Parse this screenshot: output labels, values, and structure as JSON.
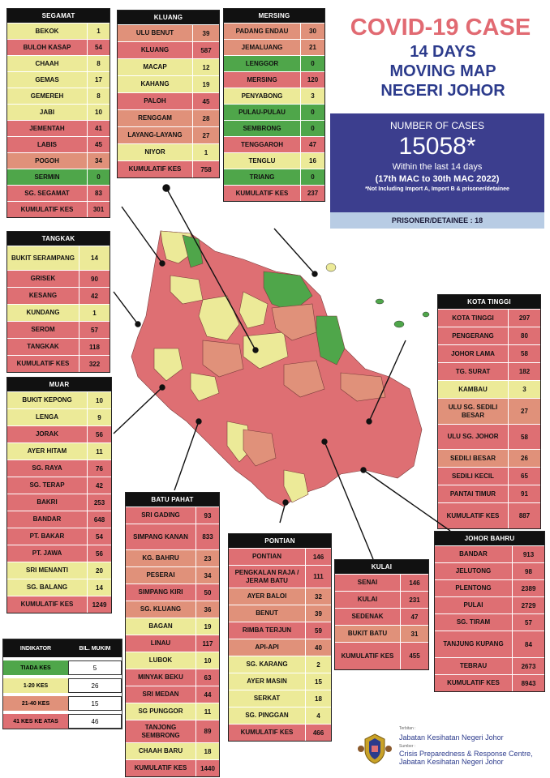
{
  "colors": {
    "tiada_kes": "#4fa64a",
    "kes_1_20": "#ecea98",
    "kes_21_40": "#e0917a",
    "kes_41_atas": "#de6f73",
    "title_red": "#e16a72",
    "title_blue": "#2c3b8c",
    "box_blue": "#3c3e8e",
    "prisoner_bg": "#b8cce4"
  },
  "title": {
    "line1": "COVID-19 CASE",
    "line2": "14 DAYS",
    "line3": "MOVING MAP",
    "line4": "NEGERI JOHOR"
  },
  "summary": {
    "label": "NUMBER OF CASES",
    "total": "15058*",
    "within": "Within the last 14 days",
    "period": "(17th MAC to 30th MAC 2022)",
    "note": "*Not Including Import A, Import B & prisoner/detainee",
    "prisoner": "PRISONER/DETAINEE : 18"
  },
  "districts": {
    "segamat": {
      "name": "SEGAMAT",
      "rows": [
        {
          "name": "BEKOK",
          "value": "1",
          "level": 1
        },
        {
          "name": "BULOH KASAP",
          "value": "54",
          "level": 3
        },
        {
          "name": "CHAAH",
          "value": "8",
          "level": 1
        },
        {
          "name": "GEMAS",
          "value": "17",
          "level": 1
        },
        {
          "name": "GEMEREH",
          "value": "8",
          "level": 1
        },
        {
          "name": "JABI",
          "value": "10",
          "level": 1
        },
        {
          "name": "JEMENTAH",
          "value": "41",
          "level": 3
        },
        {
          "name": "LABIS",
          "value": "45",
          "level": 3
        },
        {
          "name": "POGOH",
          "value": "34",
          "level": 2
        },
        {
          "name": "SERMIN",
          "value": "0",
          "level": 0
        },
        {
          "name": "SG. SEGAMAT",
          "value": "83",
          "level": 3
        },
        {
          "name": "KUMULATIF KES",
          "value": "301",
          "level": 3
        }
      ]
    },
    "kluang": {
      "name": "KLUANG",
      "rows": [
        {
          "name": "ULU BENUT",
          "value": "39",
          "level": 2
        },
        {
          "name": "KLUANG",
          "value": "587",
          "level": 3
        },
        {
          "name": "MACAP",
          "value": "12",
          "level": 1
        },
        {
          "name": "KAHANG",
          "value": "19",
          "level": 1
        },
        {
          "name": "PALOH",
          "value": "45",
          "level": 3
        },
        {
          "name": "RENGGAM",
          "value": "28",
          "level": 2
        },
        {
          "name": "LAYANG-LAYANG",
          "value": "27",
          "level": 2
        },
        {
          "name": "NIYOR",
          "value": "1",
          "level": 1
        },
        {
          "name": "KUMULATIF KES",
          "value": "758",
          "level": 3
        }
      ]
    },
    "mersing": {
      "name": "MERSING",
      "rows": [
        {
          "name": "PADANG ENDAU",
          "value": "30",
          "level": 2
        },
        {
          "name": "JEMALUANG",
          "value": "21",
          "level": 2
        },
        {
          "name": "LENGGOR",
          "value": "0",
          "level": 0
        },
        {
          "name": "MERSING",
          "value": "120",
          "level": 3
        },
        {
          "name": "PENYABONG",
          "value": "3",
          "level": 1
        },
        {
          "name": "PULAU-PULAU",
          "value": "0",
          "level": 0
        },
        {
          "name": "SEMBRONG",
          "value": "0",
          "level": 0
        },
        {
          "name": "TENGGAROH",
          "value": "47",
          "level": 3
        },
        {
          "name": "TENGLU",
          "value": "16",
          "level": 1
        },
        {
          "name": "TRIANG",
          "value": "0",
          "level": 0
        },
        {
          "name": "KUMULATIF KES",
          "value": "237",
          "level": 3
        }
      ]
    },
    "tangkak": {
      "name": "TANGKAK",
      "rows": [
        {
          "name": "BUKIT SERAMPANG",
          "value": "14",
          "level": 1
        },
        {
          "name": "GRISEK",
          "value": "90",
          "level": 3
        },
        {
          "name": "KESANG",
          "value": "42",
          "level": 3
        },
        {
          "name": "KUNDANG",
          "value": "1",
          "level": 1
        },
        {
          "name": "SEROM",
          "value": "57",
          "level": 3
        },
        {
          "name": "TANGKAK",
          "value": "118",
          "level": 3
        },
        {
          "name": "KUMULATIF KES",
          "value": "322",
          "level": 3
        }
      ]
    },
    "muar": {
      "name": "MUAR",
      "rows": [
        {
          "name": "BUKIT KEPONG",
          "value": "10",
          "level": 1
        },
        {
          "name": "LENGA",
          "value": "9",
          "level": 1
        },
        {
          "name": "JORAK",
          "value": "56",
          "level": 3
        },
        {
          "name": "AYER HITAM",
          "value": "11",
          "level": 1
        },
        {
          "name": "SG. RAYA",
          "value": "76",
          "level": 3
        },
        {
          "name": "SG. TERAP",
          "value": "42",
          "level": 3
        },
        {
          "name": "BAKRI",
          "value": "253",
          "level": 3
        },
        {
          "name": "BANDAR",
          "value": "648",
          "level": 3
        },
        {
          "name": "PT. BAKAR",
          "value": "54",
          "level": 3
        },
        {
          "name": "PT. JAWA",
          "value": "56",
          "level": 3
        },
        {
          "name": "SRI MENANTI",
          "value": "20",
          "level": 1
        },
        {
          "name": "SG. BALANG",
          "value": "14",
          "level": 1
        },
        {
          "name": "KUMULATIF KES",
          "value": "1249",
          "level": 3
        }
      ]
    },
    "kotatinggi": {
      "name": "KOTA TINGGI",
      "rows": [
        {
          "name": "KOTA TINGGI",
          "value": "297",
          "level": 3
        },
        {
          "name": "PENGERANG",
          "value": "80",
          "level": 3
        },
        {
          "name": "JOHOR LAMA",
          "value": "58",
          "level": 3
        },
        {
          "name": "TG. SURAT",
          "value": "182",
          "level": 3
        },
        {
          "name": "KAMBAU",
          "value": "3",
          "level": 1
        },
        {
          "name": "ULU SG. SEDILI BESAR",
          "value": "27",
          "level": 2
        },
        {
          "name": "ULU  SG. JOHOR",
          "value": "58",
          "level": 3
        },
        {
          "name": "SEDILI BESAR",
          "value": "26",
          "level": 2
        },
        {
          "name": "SEDILI KECIL",
          "value": "65",
          "level": 3
        },
        {
          "name": "PANTAI TIMUR",
          "value": "91",
          "level": 3
        },
        {
          "name": "KUMULATIF KES",
          "value": "887",
          "level": 3
        }
      ]
    },
    "batupahat": {
      "name": "BATU PAHAT",
      "rows": [
        {
          "name": "SRI GADING",
          "value": "93",
          "level": 3
        },
        {
          "name": "SIMPANG KANAN",
          "value": "833",
          "level": 3
        },
        {
          "name": "KG. BAHRU",
          "value": "23",
          "level": 2
        },
        {
          "name": "PESERAI",
          "value": "34",
          "level": 2
        },
        {
          "name": "SIMPANG KIRI",
          "value": "50",
          "level": 3
        },
        {
          "name": "SG. KLUANG",
          "value": "36",
          "level": 2
        },
        {
          "name": "BAGAN",
          "value": "19",
          "level": 1
        },
        {
          "name": "LINAU",
          "value": "117",
          "level": 3
        },
        {
          "name": "LUBOK",
          "value": "10",
          "level": 1
        },
        {
          "name": "MINYAK BEKU",
          "value": "63",
          "level": 3
        },
        {
          "name": "SRI MEDAN",
          "value": "44",
          "level": 3
        },
        {
          "name": "SG PUNGGOR",
          "value": "11",
          "level": 1
        },
        {
          "name": "TANJONG SEMBRONG",
          "value": "89",
          "level": 3
        },
        {
          "name": "CHAAH BARU",
          "value": "18",
          "level": 1
        },
        {
          "name": "KUMULATIF KES",
          "value": "1440",
          "level": 3
        }
      ]
    },
    "pontian": {
      "name": "PONTIAN",
      "rows": [
        {
          "name": "PONTIAN",
          "value": "146",
          "level": 3
        },
        {
          "name": "PENGKALAN RAJA / JERAM BATU",
          "value": "111",
          "level": 3
        },
        {
          "name": "AYER BALOI",
          "value": "32",
          "level": 2
        },
        {
          "name": "BENUT",
          "value": "39",
          "level": 2
        },
        {
          "name": "RIMBA TERJUN",
          "value": "59",
          "level": 3
        },
        {
          "name": "API-API",
          "value": "40",
          "level": 2
        },
        {
          "name": "SG. KARANG",
          "value": "2",
          "level": 1
        },
        {
          "name": "AYER MASIN",
          "value": "15",
          "level": 1
        },
        {
          "name": "SERKAT",
          "value": "18",
          "level": 1
        },
        {
          "name": "SG. PINGGAN",
          "value": "4",
          "level": 1
        },
        {
          "name": "KUMULATIF KES",
          "value": "466",
          "level": 3
        }
      ]
    },
    "kulai": {
      "name": "KULAI",
      "rows": [
        {
          "name": "SENAI",
          "value": "146",
          "level": 3
        },
        {
          "name": "KULAI",
          "value": "231",
          "level": 3
        },
        {
          "name": "SEDENAK",
          "value": "47",
          "level": 3
        },
        {
          "name": "BUKIT BATU",
          "value": "31",
          "level": 2
        },
        {
          "name": "KUMULATIF KES",
          "value": "455",
          "level": 3
        }
      ]
    },
    "johorbahru": {
      "name": "JOHOR BAHRU",
      "rows": [
        {
          "name": "BANDAR",
          "value": "913",
          "level": 3
        },
        {
          "name": "JELUTONG",
          "value": "98",
          "level": 3
        },
        {
          "name": "PLENTONG",
          "value": "2389",
          "level": 3
        },
        {
          "name": "PULAI",
          "value": "2729",
          "level": 3
        },
        {
          "name": "SG. TIRAM",
          "value": "57",
          "level": 3
        },
        {
          "name": "TANJUNG KUPANG",
          "value": "84",
          "level": 3
        },
        {
          "name": "TEBRAU",
          "value": "2673",
          "level": 3
        },
        {
          "name": "KUMULATIF KES",
          "value": "8943",
          "level": 3
        }
      ]
    }
  },
  "legend": {
    "col1": "INDIKATOR",
    "col2": "BIL. MUKIM",
    "rows": [
      {
        "label": "TIADA KES",
        "count": "5",
        "level": 0
      },
      {
        "label": "1-20 KES",
        "count": "26",
        "level": 1
      },
      {
        "label": "21-40 KES",
        "count": "15",
        "level": 2
      },
      {
        "label": "41 KES KE ATAS",
        "count": "46",
        "level": 3
      }
    ]
  },
  "footer": {
    "terbitan_label": "Terbitan :",
    "publisher": "Jabatan Kesihatan Negeri Johor",
    "sumber_label": "Sumber :",
    "source": "Crisis Preparedness & Response Centre, Jabatan Kesihatan Negeri Johor",
    "crest_icon": "coat-of-arms-icon"
  }
}
